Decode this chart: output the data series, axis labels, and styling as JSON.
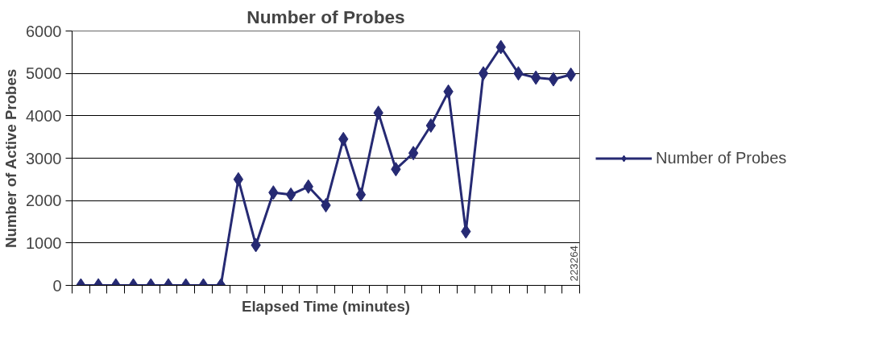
{
  "chart_data": {
    "type": "line",
    "title": "Number of Probes",
    "xlabel": "Elapsed Time (minutes)",
    "ylabel": "Number of Active Probes",
    "categories": [
      null,
      null,
      null,
      null,
      null,
      null,
      null,
      null,
      null,
      null,
      null,
      null,
      null,
      null,
      null,
      null,
      null,
      null,
      null,
      null,
      null,
      null,
      null,
      null,
      null,
      null,
      null,
      null,
      null
    ],
    "series": [
      {
        "name": "Number of Probes",
        "color": "#262a73",
        "values": [
          0,
          0,
          0,
          0,
          0,
          0,
          0,
          0,
          0,
          2500,
          950,
          2190,
          2140,
          2330,
          1890,
          3450,
          2140,
          4070,
          2740,
          3120,
          3770,
          4570,
          1270,
          5000,
          5620,
          5000,
          4900,
          4860,
          4970
        ]
      }
    ],
    "ylim": [
      0,
      6000
    ],
    "yticks": [
      0,
      1000,
      2000,
      3000,
      4000,
      5000,
      6000
    ],
    "grid": "y",
    "legend": "right",
    "marker": "diamond",
    "line_style": "solid",
    "tick_labels": "y",
    "annotations": [
      "223264"
    ]
  }
}
